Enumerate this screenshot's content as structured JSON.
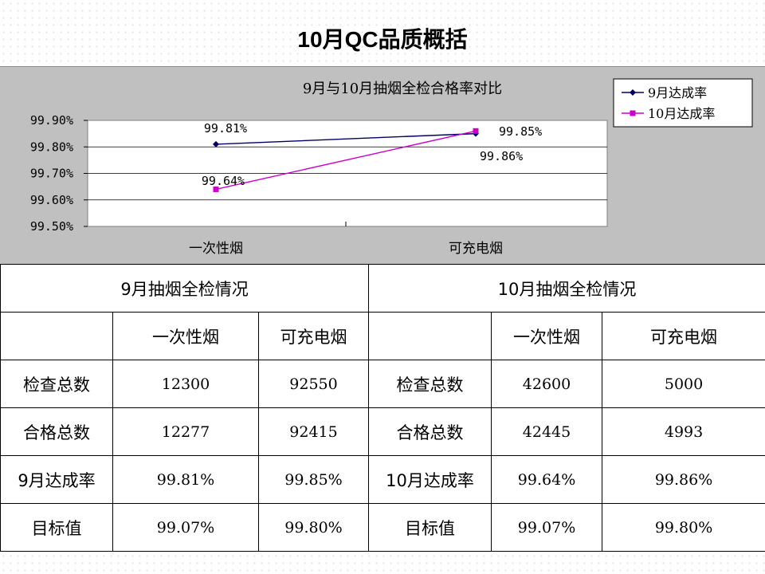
{
  "page": {
    "title": "10月QC品质概括"
  },
  "chart_data": {
    "type": "line",
    "title": "9月与10月抽烟全检合格率对比",
    "categories": [
      "一次性烟",
      "可充电烟"
    ],
    "y_ticks": [
      "99.90%",
      "99.80%",
      "99.70%",
      "99.60%",
      "99.50%"
    ],
    "ylim": [
      99.5,
      99.9
    ],
    "grid": true,
    "legend_position": "top-right",
    "series": [
      {
        "name": "9月达成率",
        "values": [
          99.81,
          99.85
        ],
        "labels": [
          "99.81%",
          "99.85%"
        ],
        "color": "#000066",
        "marker": "diamond"
      },
      {
        "name": "10月达成率",
        "values": [
          99.64,
          99.86
        ],
        "labels": [
          "99.64%",
          "99.86%"
        ],
        "color": "#cc00cc",
        "marker": "square"
      }
    ]
  },
  "table": {
    "sep_header": "9月抽烟全检情况",
    "oct_header": "10月抽烟全检情况",
    "col_disposable": "一次性烟",
    "col_rechargeable": "可充电烟",
    "rows": [
      {
        "sep_label": "检查总数",
        "sep_disposable": "12300",
        "sep_rechargeable": "92550",
        "oct_label": "检查总数",
        "oct_disposable": "42600",
        "oct_rechargeable": "5000"
      },
      {
        "sep_label": "合格总数",
        "sep_disposable": "12277",
        "sep_rechargeable": "92415",
        "oct_label": "合格总数",
        "oct_disposable": "42445",
        "oct_rechargeable": "4993"
      },
      {
        "sep_label": "9月达成率",
        "sep_disposable": "99.81%",
        "sep_rechargeable": "99.85%",
        "oct_label": "10月达成率",
        "oct_disposable": "99.64%",
        "oct_rechargeable": "99.86%"
      },
      {
        "sep_label": "目标值",
        "sep_disposable": "99.07%",
        "sep_rechargeable": "99.80%",
        "oct_label": "目标值",
        "oct_disposable": "99.07%",
        "oct_rechargeable": "99.80%"
      }
    ]
  }
}
